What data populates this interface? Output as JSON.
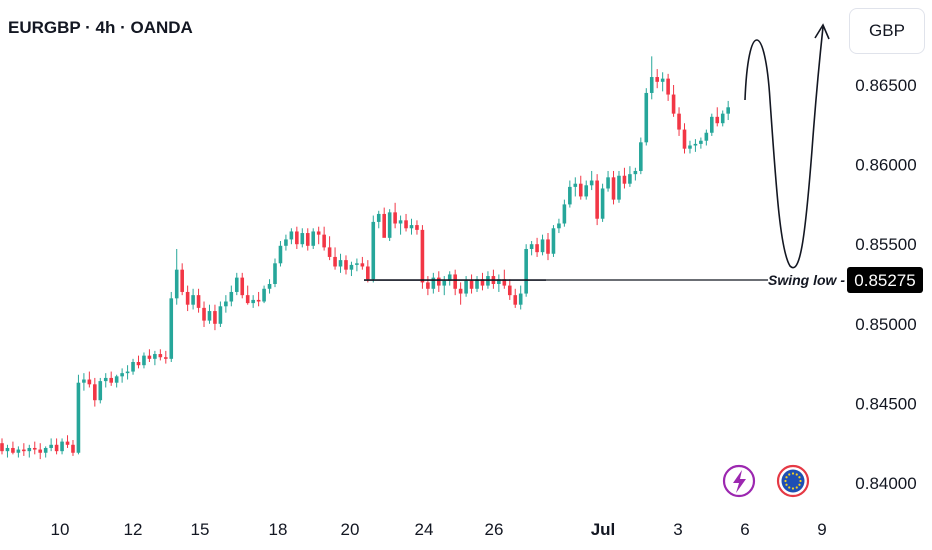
{
  "header": {
    "title": "EURGBP · 4h · OANDA"
  },
  "price_scale": {
    "currency": "GBP"
  },
  "colors": {
    "up": "#26a69a",
    "down": "#f23645",
    "text": "#131722",
    "tag_bg": "#000000"
  },
  "icons": [
    "lightning-icon",
    "eu-flag-icon"
  ],
  "chart_data": {
    "type": "candlestick",
    "title": "EURGBP · 4h · OANDA",
    "ylim": [
      0.8395,
      0.8688
    ],
    "y_ticks": [
      "0.84000",
      "0.84500",
      "0.85000",
      "0.85500",
      "0.86000",
      "0.86500"
    ],
    "x_ticks": [
      "10",
      "12",
      "15",
      "18",
      "20",
      "24",
      "26",
      "Jul",
      "3",
      "6",
      "9"
    ],
    "annotations": {
      "swing_low": {
        "label": "Swing low",
        "price": 0.85275,
        "price_label": "0.85275"
      },
      "projection": "up-down-up curved arrow path after last candle"
    },
    "candles_ohlc": [
      [
        0.8425,
        0.8428,
        0.8418,
        0.842
      ],
      [
        0.842,
        0.8424,
        0.8416,
        0.8422
      ],
      [
        0.8422,
        0.8426,
        0.8418,
        0.8419
      ],
      [
        0.8419,
        0.8423,
        0.8416,
        0.8421
      ],
      [
        0.8421,
        0.8425,
        0.8417,
        0.842
      ],
      [
        0.842,
        0.8424,
        0.8416,
        0.8422
      ],
      [
        0.8422,
        0.8426,
        0.8418,
        0.8421
      ],
      [
        0.8421,
        0.8425,
        0.8415,
        0.8419
      ],
      [
        0.8419,
        0.8423,
        0.8416,
        0.8422
      ],
      [
        0.8422,
        0.8428,
        0.842,
        0.8424
      ],
      [
        0.8424,
        0.8428,
        0.8418,
        0.842
      ],
      [
        0.842,
        0.8428,
        0.8418,
        0.8426
      ],
      [
        0.8426,
        0.843,
        0.8422,
        0.8424
      ],
      [
        0.8424,
        0.8427,
        0.8417,
        0.8419
      ],
      [
        0.8419,
        0.8468,
        0.8418,
        0.8463
      ],
      [
        0.8463,
        0.8469,
        0.8458,
        0.8465
      ],
      [
        0.8465,
        0.847,
        0.846,
        0.8462
      ],
      [
        0.8462,
        0.8466,
        0.8448,
        0.8452
      ],
      [
        0.8452,
        0.8466,
        0.845,
        0.8464
      ],
      [
        0.8464,
        0.8469,
        0.846,
        0.8466
      ],
      [
        0.8466,
        0.847,
        0.8461,
        0.8463
      ],
      [
        0.8463,
        0.8468,
        0.846,
        0.8467
      ],
      [
        0.8467,
        0.8472,
        0.8463,
        0.8469
      ],
      [
        0.8469,
        0.8474,
        0.8465,
        0.847
      ],
      [
        0.847,
        0.8478,
        0.8468,
        0.8476
      ],
      [
        0.8476,
        0.848,
        0.8472,
        0.8474
      ],
      [
        0.8474,
        0.8482,
        0.8472,
        0.848
      ],
      [
        0.848,
        0.8484,
        0.8476,
        0.8478
      ],
      [
        0.8478,
        0.8483,
        0.8474,
        0.8481
      ],
      [
        0.8481,
        0.8484,
        0.8477,
        0.8479
      ],
      [
        0.8479,
        0.8483,
        0.8475,
        0.8478
      ],
      [
        0.8478,
        0.852,
        0.8476,
        0.8516
      ],
      [
        0.8516,
        0.8547,
        0.8512,
        0.8534
      ],
      [
        0.8534,
        0.8538,
        0.8518,
        0.852
      ],
      [
        0.852,
        0.8524,
        0.8508,
        0.8512
      ],
      [
        0.8512,
        0.8522,
        0.8509,
        0.8518
      ],
      [
        0.8518,
        0.8522,
        0.8507,
        0.851
      ],
      [
        0.851,
        0.8514,
        0.8498,
        0.8502
      ],
      [
        0.8502,
        0.8512,
        0.85,
        0.8508
      ],
      [
        0.8508,
        0.8512,
        0.8496,
        0.85
      ],
      [
        0.85,
        0.8514,
        0.8498,
        0.8511
      ],
      [
        0.8511,
        0.8518,
        0.8507,
        0.8514
      ],
      [
        0.8514,
        0.8524,
        0.8511,
        0.852
      ],
      [
        0.852,
        0.8532,
        0.8518,
        0.8529
      ],
      [
        0.8529,
        0.8532,
        0.8516,
        0.8518
      ],
      [
        0.8518,
        0.8524,
        0.8512,
        0.8513
      ],
      [
        0.8513,
        0.8518,
        0.851,
        0.8515
      ],
      [
        0.8515,
        0.852,
        0.8511,
        0.8514
      ],
      [
        0.8514,
        0.8524,
        0.8513,
        0.8522
      ],
      [
        0.8522,
        0.8528,
        0.8519,
        0.8525
      ],
      [
        0.8525,
        0.8541,
        0.8523,
        0.8538
      ],
      [
        0.8538,
        0.8552,
        0.8536,
        0.8549
      ],
      [
        0.8549,
        0.8556,
        0.8546,
        0.8553
      ],
      [
        0.8553,
        0.856,
        0.855,
        0.8558
      ],
      [
        0.8558,
        0.8561,
        0.8547,
        0.855
      ],
      [
        0.855,
        0.856,
        0.8548,
        0.8557
      ],
      [
        0.8557,
        0.856,
        0.8546,
        0.8549
      ],
      [
        0.8549,
        0.856,
        0.8547,
        0.8558
      ],
      [
        0.8558,
        0.8561,
        0.855,
        0.8556
      ],
      [
        0.8556,
        0.8561,
        0.8546,
        0.8548
      ],
      [
        0.8548,
        0.8555,
        0.854,
        0.8542
      ],
      [
        0.8542,
        0.8548,
        0.8534,
        0.8536
      ],
      [
        0.8536,
        0.8544,
        0.8532,
        0.854
      ],
      [
        0.854,
        0.8543,
        0.8531,
        0.8534
      ],
      [
        0.8534,
        0.8539,
        0.853,
        0.8537
      ],
      [
        0.8537,
        0.8541,
        0.8533,
        0.8538
      ],
      [
        0.8538,
        0.8542,
        0.8534,
        0.8536
      ],
      [
        0.8536,
        0.854,
        0.8526,
        0.8528
      ],
      [
        0.8528,
        0.8568,
        0.8526,
        0.8564
      ],
      [
        0.8564,
        0.8571,
        0.856,
        0.8569
      ],
      [
        0.8569,
        0.8573,
        0.856,
        0.8554
      ],
      [
        0.8554,
        0.8572,
        0.8552,
        0.857
      ],
      [
        0.857,
        0.8576,
        0.856,
        0.8563
      ],
      [
        0.8563,
        0.8568,
        0.8556,
        0.8565
      ],
      [
        0.8565,
        0.8569,
        0.8558,
        0.856
      ],
      [
        0.856,
        0.8566,
        0.8556,
        0.8562
      ],
      [
        0.8562,
        0.8565,
        0.8556,
        0.8559
      ],
      [
        0.8559,
        0.8562,
        0.8522,
        0.8526
      ],
      [
        0.8526,
        0.853,
        0.8518,
        0.8522
      ],
      [
        0.8522,
        0.8532,
        0.8519,
        0.8529
      ],
      [
        0.8529,
        0.8533,
        0.852,
        0.8524
      ],
      [
        0.8524,
        0.853,
        0.8518,
        0.8527
      ],
      [
        0.8527,
        0.8533,
        0.8524,
        0.8531
      ],
      [
        0.8531,
        0.8534,
        0.8518,
        0.8522
      ],
      [
        0.8522,
        0.8526,
        0.8512,
        0.8519
      ],
      [
        0.8519,
        0.853,
        0.8517,
        0.8527
      ],
      [
        0.8527,
        0.8531,
        0.8519,
        0.8522
      ],
      [
        0.8522,
        0.853,
        0.852,
        0.8528
      ],
      [
        0.8528,
        0.8532,
        0.8521,
        0.8524
      ],
      [
        0.8524,
        0.8533,
        0.8522,
        0.853
      ],
      [
        0.853,
        0.8534,
        0.8522,
        0.8525
      ],
      [
        0.8525,
        0.8531,
        0.852,
        0.8528
      ],
      [
        0.8528,
        0.8534,
        0.8522,
        0.8524
      ],
      [
        0.8524,
        0.8528,
        0.8515,
        0.8518
      ],
      [
        0.8518,
        0.8522,
        0.851,
        0.8512
      ],
      [
        0.8512,
        0.8524,
        0.8509,
        0.8519
      ],
      [
        0.8519,
        0.855,
        0.8517,
        0.8547
      ],
      [
        0.8547,
        0.8552,
        0.8543,
        0.855
      ],
      [
        0.855,
        0.8554,
        0.8542,
        0.8545
      ],
      [
        0.8545,
        0.8556,
        0.8543,
        0.8553
      ],
      [
        0.8553,
        0.8557,
        0.854,
        0.8544
      ],
      [
        0.8544,
        0.8562,
        0.8542,
        0.856
      ],
      [
        0.856,
        0.8566,
        0.8557,
        0.8563
      ],
      [
        0.8563,
        0.8578,
        0.8561,
        0.8575
      ],
      [
        0.8575,
        0.859,
        0.8573,
        0.8586
      ],
      [
        0.8586,
        0.8592,
        0.858,
        0.8588
      ],
      [
        0.8588,
        0.8593,
        0.8578,
        0.858
      ],
      [
        0.858,
        0.859,
        0.8578,
        0.8587
      ],
      [
        0.8587,
        0.8596,
        0.8584,
        0.859
      ],
      [
        0.859,
        0.8594,
        0.8562,
        0.8566
      ],
      [
        0.8566,
        0.8588,
        0.8564,
        0.8585
      ],
      [
        0.8585,
        0.8596,
        0.8583,
        0.8592
      ],
      [
        0.8592,
        0.8596,
        0.8575,
        0.8578
      ],
      [
        0.8578,
        0.8596,
        0.8576,
        0.8593
      ],
      [
        0.8593,
        0.8598,
        0.8585,
        0.8588
      ],
      [
        0.8588,
        0.8599,
        0.8586,
        0.8594
      ],
      [
        0.8594,
        0.8598,
        0.859,
        0.8596
      ],
      [
        0.8596,
        0.8617,
        0.8594,
        0.8614
      ],
      [
        0.8614,
        0.8648,
        0.8612,
        0.8645
      ],
      [
        0.8645,
        0.8668,
        0.8641,
        0.8655
      ],
      [
        0.8655,
        0.866,
        0.8648,
        0.8652
      ],
      [
        0.8652,
        0.8658,
        0.8646,
        0.8654
      ],
      [
        0.8654,
        0.8657,
        0.864,
        0.8644
      ],
      [
        0.8644,
        0.865,
        0.863,
        0.8632
      ],
      [
        0.8632,
        0.8636,
        0.8618,
        0.8622
      ],
      [
        0.8622,
        0.8626,
        0.8607,
        0.861
      ],
      [
        0.861,
        0.8615,
        0.8607,
        0.8612
      ],
      [
        0.8612,
        0.8616,
        0.8608,
        0.8613
      ],
      [
        0.8613,
        0.8617,
        0.861,
        0.8615
      ],
      [
        0.8615,
        0.8622,
        0.8612,
        0.862
      ],
      [
        0.862,
        0.8632,
        0.8618,
        0.863
      ],
      [
        0.863,
        0.8636,
        0.8624,
        0.8626
      ],
      [
        0.8626,
        0.8634,
        0.8624,
        0.8632
      ],
      [
        0.8632,
        0.864,
        0.8628,
        0.8636
      ]
    ]
  }
}
